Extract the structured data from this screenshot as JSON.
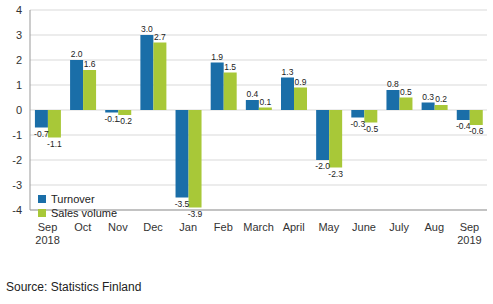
{
  "chart_data": {
    "type": "bar",
    "categories": [
      "Sep 2018",
      "Oct",
      "Nov",
      "Dec",
      "Jan",
      "Feb",
      "March",
      "April",
      "May",
      "June",
      "July",
      "Aug",
      "Sep 2019"
    ],
    "series": [
      {
        "name": "Turnover",
        "color": "#1a6ea8",
        "values": [
          -0.7,
          2.0,
          -0.1,
          3.0,
          -3.5,
          1.9,
          0.4,
          1.3,
          -2.0,
          -0.3,
          0.8,
          0.3,
          -0.4
        ]
      },
      {
        "name": "Sales volume",
        "color": "#a8c838",
        "values": [
          -1.1,
          1.6,
          -0.2,
          2.7,
          -3.9,
          1.5,
          0.1,
          0.9,
          -2.3,
          -0.5,
          0.5,
          0.2,
          -0.6
        ]
      }
    ],
    "ylim": [
      -4,
      4
    ],
    "yticks": [
      -4,
      -3,
      -2,
      -1,
      0,
      1,
      2,
      3,
      4
    ],
    "grid": true,
    "legend": "lower left",
    "data_labels": true,
    "annotations": [
      "Source: Statistics Finland"
    ]
  }
}
